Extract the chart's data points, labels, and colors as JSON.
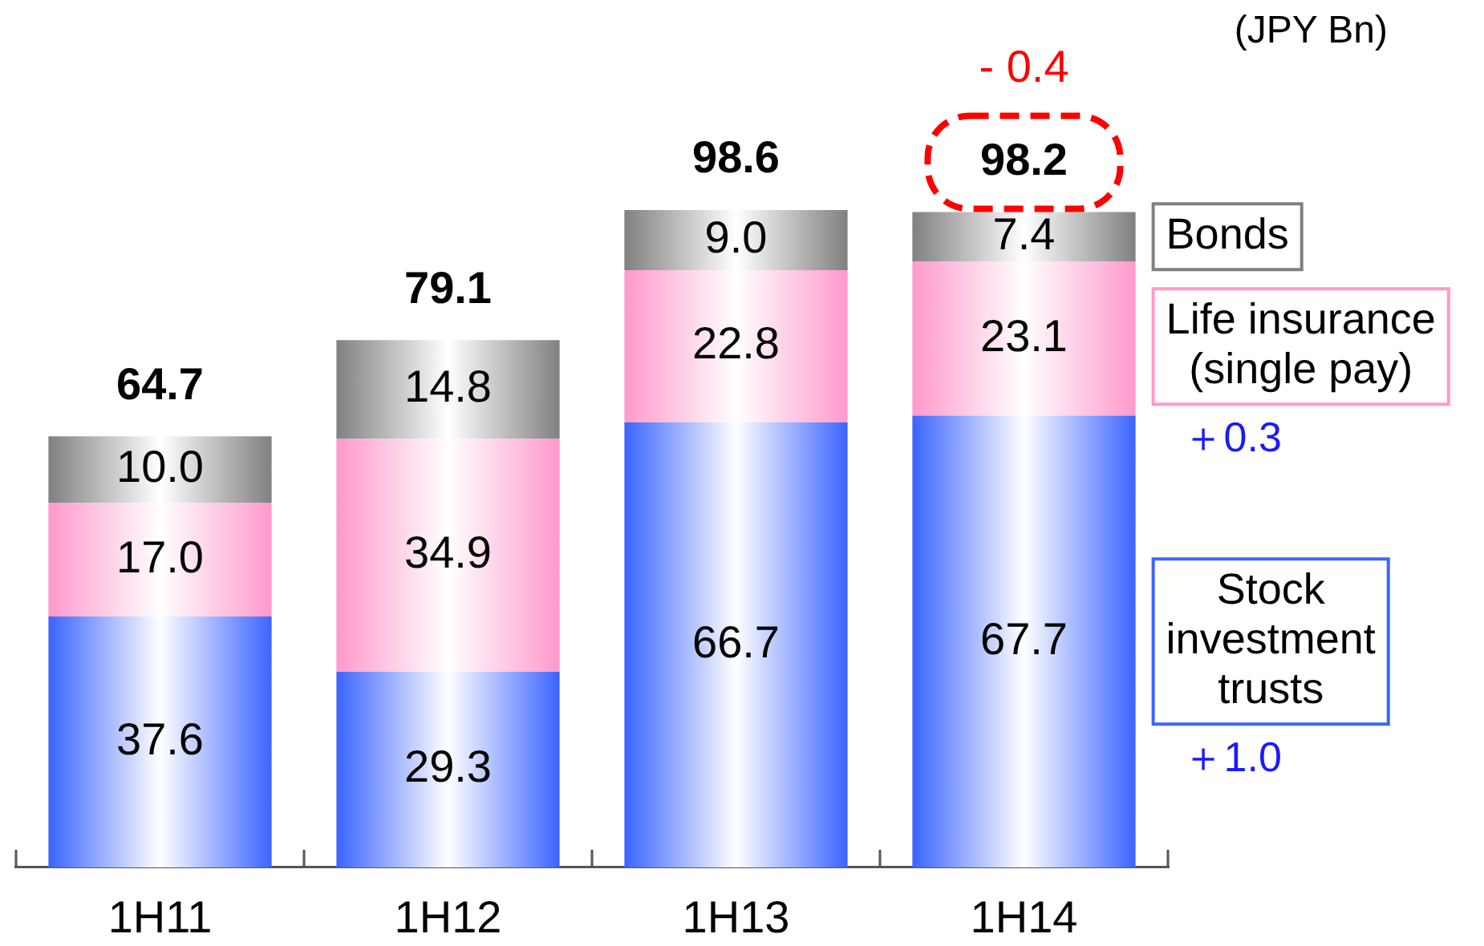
{
  "chart_data": {
    "type": "bar",
    "stacked": true,
    "categories": [
      "1H11",
      "1H12",
      "1H13",
      "1H14"
    ],
    "series": [
      {
        "name": "Stock investment trusts",
        "color": "#3b64ff",
        "values": [
          37.6,
          29.3,
          66.7,
          67.7
        ],
        "value_labels": [
          "37.6",
          "29.3",
          "66.7",
          "67.7"
        ]
      },
      {
        "name": "Life insurance (single pay)",
        "color": "#ff99cc",
        "values": [
          17.0,
          34.9,
          22.8,
          23.1
        ],
        "value_labels": [
          "17.0",
          "34.9",
          "22.8",
          "23.1"
        ]
      },
      {
        "name": "Bonds",
        "color": "#808080",
        "values": [
          10.0,
          14.8,
          9.0,
          7.4
        ],
        "value_labels": [
          "10.0",
          "14.8",
          "9.0",
          "7.4"
        ]
      }
    ],
    "totals": [
      "64.7",
      "79.1",
      "98.6",
      "98.2"
    ],
    "annotations": [
      "(JPY Bn)",
      {
        "text": "- 0.4",
        "x": "1H14",
        "y": 98.2
      },
      "＋0.3",
      "＋1.0"
    ],
    "legend": "right"
  }
}
